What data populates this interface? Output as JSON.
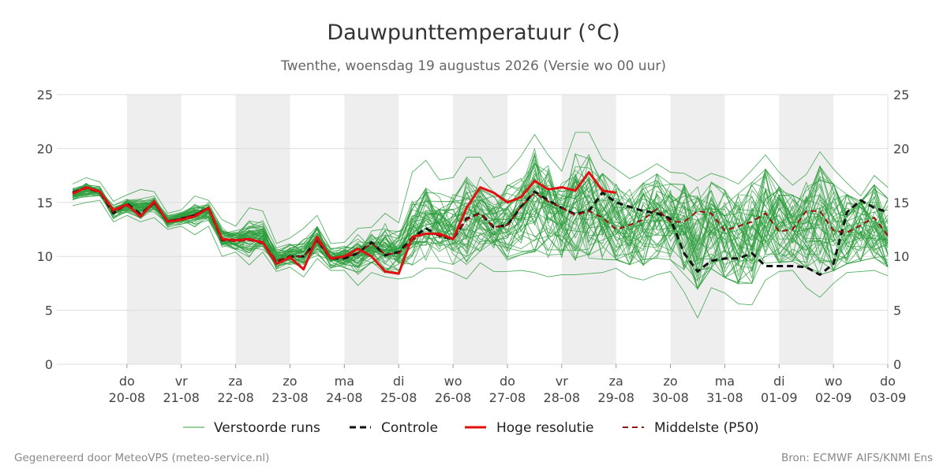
{
  "chart_data": {
    "type": "line",
    "title": "Dauwpunttemperatuur (°C)",
    "subtitle": "Twenthe, woensdag 19 augustus 2026 (Versie wo 00 uur)",
    "ylim": [
      0,
      25
    ],
    "yticks": [
      0,
      5,
      10,
      15,
      20,
      25
    ],
    "grid": true,
    "legend_position": "bottom",
    "x_start": "19-08 06",
    "x_end": "03-09 00",
    "x_unit": "dagen vanaf 19-08 00 uur",
    "xlim_days": [
      0,
      15
    ],
    "x_ticks": [
      {
        "day": 1,
        "weekday": "do",
        "date": "20-08"
      },
      {
        "day": 2,
        "weekday": "vr",
        "date": "21-08"
      },
      {
        "day": 3,
        "weekday": "za",
        "date": "22-08"
      },
      {
        "day": 4,
        "weekday": "zo",
        "date": "23-08"
      },
      {
        "day": 5,
        "weekday": "ma",
        "date": "24-08"
      },
      {
        "day": 6,
        "weekday": "di",
        "date": "25-08"
      },
      {
        "day": 7,
        "weekday": "wo",
        "date": "26-08"
      },
      {
        "day": 8,
        "weekday": "do",
        "date": "27-08"
      },
      {
        "day": 9,
        "weekday": "vr",
        "date": "28-08"
      },
      {
        "day": 10,
        "weekday": "za",
        "date": "29-08"
      },
      {
        "day": 11,
        "weekday": "zo",
        "date": "30-08"
      },
      {
        "day": 12,
        "weekday": "ma",
        "date": "31-08"
      },
      {
        "day": 13,
        "weekday": "di",
        "date": "01-09"
      },
      {
        "day": 14,
        "weekday": "wo",
        "date": "02-09"
      },
      {
        "day": 15,
        "weekday": "do",
        "date": "03-09"
      }
    ],
    "shaded_days": [
      [
        1,
        2
      ],
      [
        3,
        4
      ],
      [
        5,
        6
      ],
      [
        7,
        8
      ],
      [
        9,
        10
      ],
      [
        11,
        12
      ],
      [
        13,
        14
      ]
    ],
    "colors": {
      "ensemble": "#2e9e3e",
      "control": "#111111",
      "high_res": "#e01010",
      "median": "#9b1010",
      "shade": "#eeeeee",
      "grid": "#dddddd"
    },
    "series": [
      {
        "name": "Controle",
        "style": "dashed",
        "x_days": [
          0,
          0.25,
          0.5,
          0.75,
          1,
          1.25,
          1.5,
          1.75,
          2,
          2.25,
          2.5,
          2.75,
          3,
          3.25,
          3.5,
          3.75,
          4,
          4.25,
          4.5,
          4.75,
          5,
          5.25,
          5.5,
          5.75,
          6,
          6.25,
          6.5,
          6.75,
          7,
          7.25,
          7.5,
          7.75,
          8,
          8.25,
          8.5,
          8.75,
          9,
          9.25,
          9.5,
          9.75,
          10,
          10.25,
          10.5,
          10.75,
          11,
          11.25,
          11.5,
          11.75,
          12,
          12.25,
          12.5,
          12.75,
          13,
          13.25,
          13.5,
          13.75,
          14,
          14.25,
          14.5,
          14.75,
          15
        ],
        "values": [
          15.9,
          16.4,
          16.0,
          14.0,
          14.9,
          13.9,
          15.0,
          13.2,
          13.5,
          13.8,
          14.5,
          11.5,
          11.5,
          11.6,
          11.3,
          9.4,
          10.0,
          10.0,
          11.5,
          9.8,
          9.8,
          10.3,
          11.3,
          10.1,
          10.4,
          11.7,
          12.6,
          11.9,
          11.6,
          13.5,
          14.0,
          12.7,
          12.9,
          14.6,
          16.0,
          15.2,
          14.5,
          13.9,
          14.2,
          15.9,
          15.0,
          14.6,
          14.2,
          14.0,
          13.5,
          10.3,
          8.6,
          9.6,
          9.8,
          9.8,
          10.3,
          9.1,
          9.1,
          9.1,
          9.0,
          8.3,
          9.3,
          14.1,
          15.2,
          14.5,
          14.1
        ]
      },
      {
        "name": "Hoge resolutie",
        "style": "solid",
        "x_days": [
          0,
          0.25,
          0.5,
          0.75,
          1,
          1.25,
          1.5,
          1.75,
          2,
          2.25,
          2.5,
          2.75,
          3,
          3.25,
          3.5,
          3.75,
          4,
          4.25,
          4.5,
          4.75,
          5,
          5.25,
          5.5,
          5.75,
          6,
          6.25,
          6.5,
          6.75,
          7,
          7.25,
          7.5,
          7.75,
          8,
          8.25,
          8.5,
          8.75,
          9,
          9.25,
          9.5,
          9.75,
          10
        ],
        "values": [
          15.8,
          16.4,
          16.0,
          14.3,
          14.8,
          13.7,
          15.1,
          13.2,
          13.4,
          13.7,
          14.5,
          11.6,
          11.5,
          11.6,
          11.3,
          9.3,
          9.9,
          8.8,
          11.8,
          9.8,
          10.0,
          10.7,
          10.0,
          8.6,
          8.4,
          11.8,
          12.1,
          12.1,
          11.6,
          14.5,
          16.4,
          15.9,
          15.0,
          15.5,
          17.0,
          16.2,
          16.4,
          16.1,
          17.8,
          16.1,
          15.9
        ]
      },
      {
        "name": "Middelste (P50)",
        "style": "dashed",
        "x_days": [
          0,
          0.25,
          0.5,
          0.75,
          1,
          1.25,
          1.5,
          1.75,
          2,
          2.25,
          2.5,
          2.75,
          3,
          3.25,
          3.5,
          3.75,
          4,
          4.25,
          4.5,
          4.75,
          5,
          5.25,
          5.5,
          5.75,
          6,
          6.25,
          6.5,
          6.75,
          7,
          7.25,
          7.5,
          7.75,
          8,
          8.25,
          8.5,
          8.75,
          9,
          9.25,
          9.5,
          9.75,
          10,
          10.25,
          10.5,
          10.75,
          11,
          11.25,
          11.5,
          11.75,
          12,
          12.25,
          12.5,
          12.75,
          13,
          13.25,
          13.5,
          13.75,
          14,
          14.25,
          14.5,
          14.75,
          15
        ],
        "values": [
          15.9,
          16.3,
          15.9,
          14.1,
          14.7,
          13.8,
          14.9,
          13.3,
          13.5,
          13.9,
          14.4,
          11.5,
          11.4,
          11.5,
          11.2,
          9.6,
          10.0,
          10.0,
          11.4,
          9.9,
          9.9,
          10.3,
          11.2,
          10.2,
          10.3,
          11.5,
          12.2,
          11.9,
          11.7,
          13.4,
          14.0,
          12.7,
          12.9,
          14.6,
          15.9,
          15.1,
          14.5,
          13.8,
          14.2,
          13.6,
          12.5,
          12.9,
          13.4,
          14.4,
          13.2,
          13.2,
          14.2,
          14.0,
          12.4,
          12.8,
          13.2,
          14.0,
          12.3,
          12.5,
          14.2,
          14.2,
          12.4,
          12.2,
          12.9,
          13.6,
          11.9
        ]
      }
    ],
    "ensemble": {
      "name": "Verstoorde runs",
      "members": 50,
      "x_days": [
        0,
        0.25,
        0.5,
        0.75,
        1,
        1.25,
        1.5,
        1.75,
        2,
        2.25,
        2.5,
        2.75,
        3,
        3.25,
        3.5,
        3.75,
        4,
        4.25,
        4.5,
        4.75,
        5,
        5.25,
        5.5,
        5.75,
        6,
        6.25,
        6.5,
        6.75,
        7,
        7.25,
        7.5,
        7.75,
        8,
        8.25,
        8.5,
        8.75,
        9,
        9.25,
        9.5,
        9.75,
        10,
        10.25,
        10.5,
        10.75,
        11,
        11.25,
        11.5,
        11.75,
        12,
        12.25,
        12.5,
        12.75,
        13,
        13.25,
        13.5,
        13.75,
        14,
        14.25,
        14.5,
        14.75,
        15
      ],
      "min": [
        14.7,
        15.0,
        15.2,
        13.2,
        13.8,
        13.2,
        13.6,
        12.5,
        12.8,
        12.0,
        12.8,
        10.0,
        10.4,
        9.2,
        10.4,
        8.6,
        9.0,
        8.1,
        9.8,
        8.7,
        8.7,
        7.3,
        8.5,
        8.1,
        7.9,
        8.1,
        8.9,
        8.9,
        8.5,
        7.9,
        9.4,
        8.6,
        8.6,
        8.7,
        8.5,
        8.1,
        8.3,
        8.3,
        8.4,
        8.5,
        8.9,
        8.1,
        7.8,
        8.3,
        8.6,
        6.7,
        4.3,
        7.1,
        6.6,
        5.6,
        5.5,
        7.8,
        8.6,
        8.7,
        7.1,
        6.2,
        7.5,
        8.5,
        8.6,
        8.7,
        8.2
      ],
      "max": [
        16.7,
        17.3,
        16.9,
        15.1,
        15.7,
        16.2,
        16.0,
        14.0,
        14.3,
        15.6,
        15.2,
        13.4,
        12.8,
        14.5,
        14.2,
        11.2,
        11.7,
        12.6,
        13.8,
        11.2,
        11.3,
        12.6,
        12.7,
        14.0,
        13.1,
        17.8,
        18.9,
        17.1,
        17.3,
        19.2,
        19.2,
        17.3,
        17.8,
        19.3,
        21.3,
        19.4,
        17.9,
        21.5,
        21.5,
        19.0,
        18.1,
        17.2,
        17.8,
        18.6,
        17.8,
        17.7,
        17.0,
        17.7,
        17.3,
        16.7,
        18.0,
        19.4,
        17.8,
        16.6,
        17.6,
        19.7,
        18.1,
        16.8,
        15.6,
        17.5,
        16.4
      ]
    },
    "legend": [
      "Verstoorde runs",
      "Controle",
      "Hoge resolutie",
      "Middelste (P50)"
    ]
  },
  "footer": {
    "left": "Gegenereerd door MeteoVPS (meteo-service.nl)",
    "right": "Bron: ECMWF AIFS/KNMI Ens"
  }
}
